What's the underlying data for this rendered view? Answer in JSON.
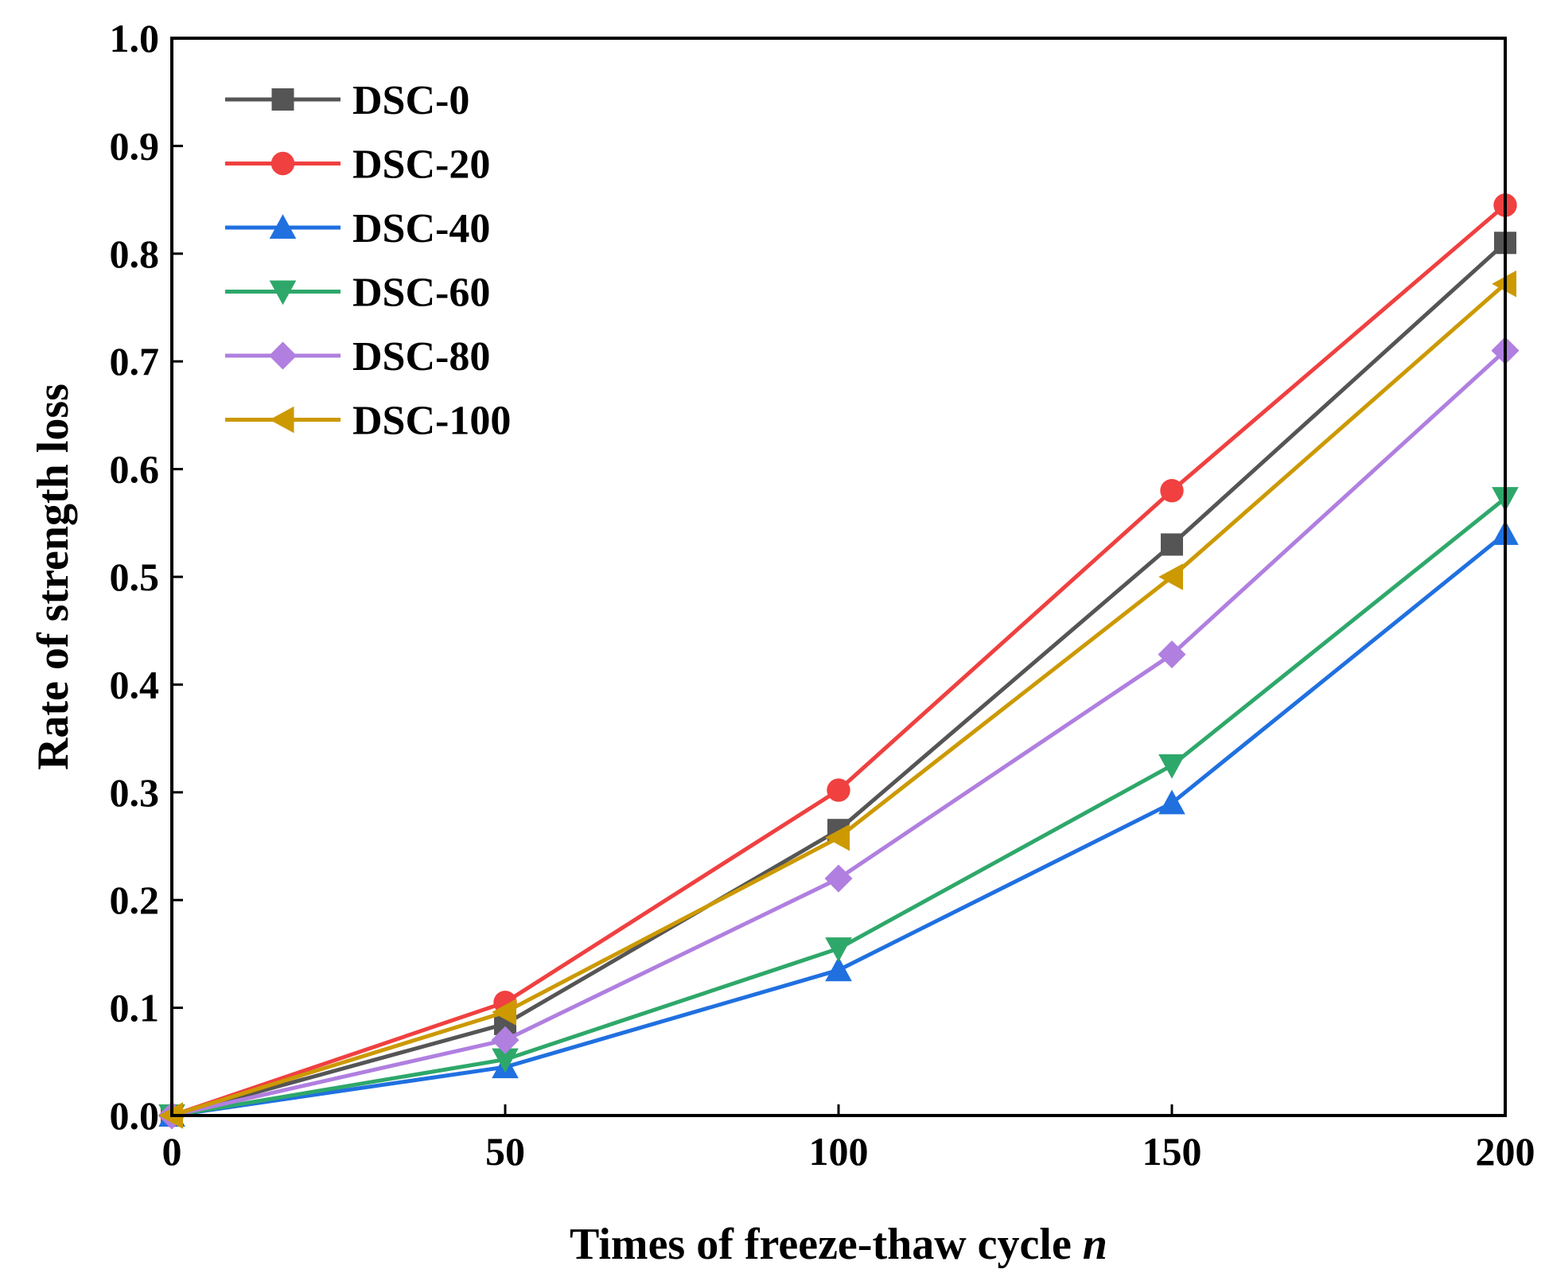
{
  "chart_data": {
    "type": "line",
    "xlabel": "Times of freeze-thaw cycle ",
    "xlabel_italic": "n",
    "ylabel": "Rate of strength loss",
    "x": [
      0,
      50,
      100,
      150,
      200
    ],
    "xlim": [
      0,
      200
    ],
    "ylim": [
      0.0,
      1.0
    ],
    "xticks": [
      "0",
      "50",
      "100",
      "150",
      "200"
    ],
    "yticks": [
      "0.0",
      "0.1",
      "0.2",
      "0.3",
      "0.4",
      "0.5",
      "0.6",
      "0.7",
      "0.8",
      "0.9",
      "1.0"
    ],
    "legend_position": "top-left",
    "grid": false,
    "series": [
      {
        "name": "DSC-0",
        "color": "#555555",
        "marker": "square",
        "values": [
          0.0,
          0.085,
          0.265,
          0.53,
          0.81
        ]
      },
      {
        "name": "DSC-20",
        "color": "#F04040",
        "marker": "circle",
        "values": [
          0.0,
          0.105,
          0.302,
          0.58,
          0.845
        ]
      },
      {
        "name": "DSC-40",
        "color": "#2070E0",
        "marker": "triangle-up",
        "values": [
          0.0,
          0.045,
          0.135,
          0.29,
          0.54
        ]
      },
      {
        "name": "DSC-60",
        "color": "#2EA86A",
        "marker": "triangle-down",
        "values": [
          0.0,
          0.052,
          0.155,
          0.325,
          0.573
        ]
      },
      {
        "name": "DSC-80",
        "color": "#B07FE0",
        "marker": "diamond",
        "values": [
          0.0,
          0.07,
          0.22,
          0.428,
          0.71
        ]
      },
      {
        "name": "DSC-100",
        "color": "#CC9900",
        "marker": "triangle-left",
        "values": [
          0.0,
          0.096,
          0.258,
          0.5,
          0.772
        ]
      }
    ]
  }
}
